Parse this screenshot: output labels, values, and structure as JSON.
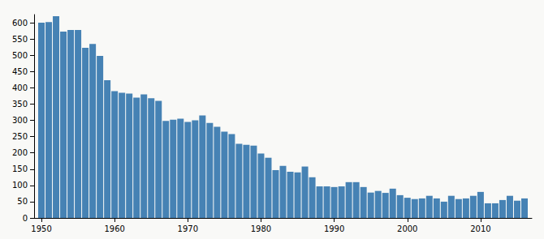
{
  "chart_data": {
    "type": "bar",
    "x": [
      1950,
      1951,
      1952,
      1953,
      1954,
      1955,
      1956,
      1957,
      1958,
      1959,
      1960,
      1961,
      1962,
      1963,
      1964,
      1965,
      1966,
      1967,
      1968,
      1969,
      1970,
      1971,
      1972,
      1973,
      1974,
      1975,
      1976,
      1977,
      1978,
      1979,
      1980,
      1981,
      1982,
      1983,
      1984,
      1985,
      1986,
      1987,
      1988,
      1989,
      1990,
      1991,
      1992,
      1993,
      1994,
      1995,
      1996,
      1997,
      1998,
      1999,
      2000,
      2001,
      2002,
      2003,
      2004,
      2005,
      2006,
      2007,
      2008,
      2009,
      2010,
      2011,
      2012,
      2013,
      2014,
      2015,
      2016
    ],
    "values": [
      600,
      602,
      620,
      573,
      578,
      578,
      523,
      535,
      498,
      423,
      390,
      385,
      382,
      370,
      380,
      368,
      360,
      298,
      302,
      305,
      295,
      300,
      315,
      292,
      280,
      265,
      258,
      228,
      225,
      222,
      198,
      185,
      147,
      160,
      142,
      140,
      158,
      125,
      97,
      97,
      95,
      97,
      110,
      110,
      95,
      78,
      83,
      77,
      90,
      70,
      62,
      58,
      60,
      68,
      60,
      50,
      68,
      58,
      60,
      68,
      80,
      45,
      45,
      55,
      68,
      53,
      60
    ],
    "color": "#4682b4",
    "xlim": [
      1949,
      2017
    ],
    "xticks": [
      1950,
      1960,
      1970,
      1980,
      1990,
      2000,
      2010
    ],
    "ylim": [
      0,
      625
    ],
    "yticks": [
      0,
      50,
      100,
      150,
      200,
      250,
      300,
      350,
      400,
      450,
      500,
      550,
      600
    ],
    "grid": false
  }
}
